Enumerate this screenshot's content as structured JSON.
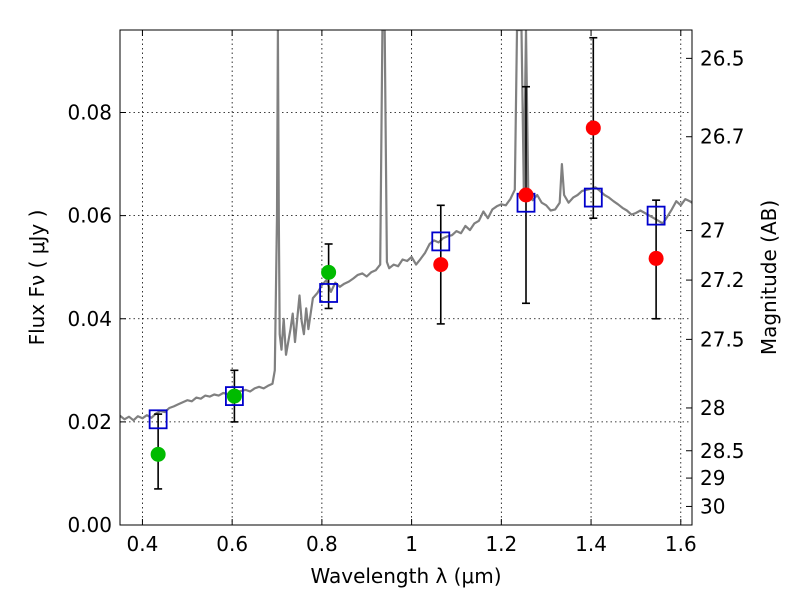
{
  "colors": {
    "spectrum": "#808080",
    "model_box": "#0000cc",
    "green_points": "#00bb00",
    "red_points": "#ff0000",
    "error_bars": "#000000"
  },
  "chart_data": {
    "type": "scatter",
    "title": "",
    "xlabel": "Wavelength  λ (μm)",
    "ylabel": "Flux  Fν  ( μJy )",
    "y2label": "Magnitude (AB)",
    "xlim": [
      0.35,
      1.625
    ],
    "ylim": [
      0.0,
      0.096
    ],
    "grid": true,
    "xticks": [
      0.4,
      0.6,
      0.8,
      1.0,
      1.2,
      1.4,
      1.6
    ],
    "xtick_labels": [
      "0.4",
      "0.6",
      "0.8",
      "1",
      "1.2",
      "1.4",
      "1.6"
    ],
    "yticks": [
      0.0,
      0.02,
      0.04,
      0.06,
      0.08
    ],
    "ytick_labels": [
      "0.00",
      "0.02",
      "0.04",
      "0.06",
      "0.08"
    ],
    "y2ticks": [
      {
        "label": "26.5",
        "flux": 0.0905
      },
      {
        "label": "26.7",
        "flux": 0.0753
      },
      {
        "label": "27",
        "flux": 0.0571
      },
      {
        "label": "27.2",
        "flux": 0.0475
      },
      {
        "label": "27.5",
        "flux": 0.036
      },
      {
        "label": "28",
        "flux": 0.0227
      },
      {
        "label": "28.5",
        "flux": 0.0144
      },
      {
        "label": "29",
        "flux": 0.0091
      },
      {
        "label": "30",
        "flux": 0.0036
      }
    ],
    "spectrum": [
      [
        0.35,
        0.0212
      ],
      [
        0.36,
        0.0205
      ],
      [
        0.37,
        0.021
      ],
      [
        0.38,
        0.0203
      ],
      [
        0.39,
        0.0211
      ],
      [
        0.4,
        0.0207
      ],
      [
        0.41,
        0.0213
      ],
      [
        0.42,
        0.0208
      ],
      [
        0.43,
        0.0216
      ],
      [
        0.44,
        0.0221
      ],
      [
        0.45,
        0.0219
      ],
      [
        0.46,
        0.0227
      ],
      [
        0.47,
        0.023
      ],
      [
        0.48,
        0.0234
      ],
      [
        0.49,
        0.0238
      ],
      [
        0.5,
        0.0242
      ],
      [
        0.51,
        0.024
      ],
      [
        0.52,
        0.0247
      ],
      [
        0.53,
        0.0245
      ],
      [
        0.54,
        0.0251
      ],
      [
        0.55,
        0.0249
      ],
      [
        0.56,
        0.0253
      ],
      [
        0.57,
        0.0251
      ],
      [
        0.58,
        0.0256
      ],
      [
        0.59,
        0.0254
      ],
      [
        0.6,
        0.0256
      ],
      [
        0.61,
        0.0258
      ],
      [
        0.62,
        0.026
      ],
      [
        0.63,
        0.0262
      ],
      [
        0.64,
        0.0259
      ],
      [
        0.65,
        0.0265
      ],
      [
        0.66,
        0.0268
      ],
      [
        0.67,
        0.0265
      ],
      [
        0.68,
        0.027
      ],
      [
        0.69,
        0.0274
      ],
      [
        0.695,
        0.03
      ],
      [
        0.7,
        0.06
      ],
      [
        0.702,
        0.096
      ],
      [
        0.704,
        0.06
      ],
      [
        0.706,
        0.037
      ],
      [
        0.71,
        0.034
      ],
      [
        0.715,
        0.04
      ],
      [
        0.72,
        0.033
      ],
      [
        0.73,
        0.038
      ],
      [
        0.735,
        0.041
      ],
      [
        0.74,
        0.0355
      ],
      [
        0.75,
        0.0445
      ],
      [
        0.755,
        0.0395
      ],
      [
        0.76,
        0.037
      ],
      [
        0.765,
        0.042
      ],
      [
        0.77,
        0.038
      ],
      [
        0.78,
        0.044
      ],
      [
        0.79,
        0.045
      ],
      [
        0.8,
        0.0465
      ],
      [
        0.81,
        0.0475
      ],
      [
        0.82,
        0.0452
      ],
      [
        0.83,
        0.047
      ],
      [
        0.84,
        0.0462
      ],
      [
        0.85,
        0.0468
      ],
      [
        0.86,
        0.0472
      ],
      [
        0.87,
        0.0478
      ],
      [
        0.88,
        0.0485
      ],
      [
        0.89,
        0.0488
      ],
      [
        0.9,
        0.0482
      ],
      [
        0.91,
        0.049
      ],
      [
        0.92,
        0.0494
      ],
      [
        0.93,
        0.0505
      ],
      [
        0.935,
        0.096
      ],
      [
        0.94,
        0.096
      ],
      [
        0.945,
        0.051
      ],
      [
        0.95,
        0.0498
      ],
      [
        0.96,
        0.0505
      ],
      [
        0.97,
        0.0502
      ],
      [
        0.98,
        0.0515
      ],
      [
        0.99,
        0.0512
      ],
      [
        1.0,
        0.052
      ],
      [
        1.01,
        0.0505
      ],
      [
        1.02,
        0.0516
      ],
      [
        1.03,
        0.0528
      ],
      [
        1.04,
        0.0545
      ],
      [
        1.05,
        0.0552
      ],
      [
        1.06,
        0.0548
      ],
      [
        1.07,
        0.0556
      ],
      [
        1.08,
        0.056
      ],
      [
        1.09,
        0.0562
      ],
      [
        1.1,
        0.057
      ],
      [
        1.11,
        0.0566
      ],
      [
        1.12,
        0.058
      ],
      [
        1.13,
        0.0572
      ],
      [
        1.14,
        0.0585
      ],
      [
        1.15,
        0.059
      ],
      [
        1.16,
        0.0608
      ],
      [
        1.17,
        0.0595
      ],
      [
        1.18,
        0.0612
      ],
      [
        1.19,
        0.0618
      ],
      [
        1.2,
        0.0622
      ],
      [
        1.21,
        0.062
      ],
      [
        1.22,
        0.0632
      ],
      [
        1.23,
        0.065
      ],
      [
        1.235,
        0.096
      ],
      [
        1.245,
        0.096
      ],
      [
        1.25,
        0.065
      ],
      [
        1.255,
        0.096
      ],
      [
        1.26,
        0.064
      ],
      [
        1.27,
        0.063
      ],
      [
        1.28,
        0.064
      ],
      [
        1.29,
        0.0625
      ],
      [
        1.3,
        0.062
      ],
      [
        1.31,
        0.061
      ],
      [
        1.32,
        0.0612
      ],
      [
        1.33,
        0.0625
      ],
      [
        1.335,
        0.07
      ],
      [
        1.34,
        0.064
      ],
      [
        1.35,
        0.0625
      ],
      [
        1.36,
        0.0635
      ],
      [
        1.37,
        0.064
      ],
      [
        1.38,
        0.0648
      ],
      [
        1.39,
        0.065
      ],
      [
        1.4,
        0.0652
      ],
      [
        1.41,
        0.0655
      ],
      [
        1.42,
        0.0648
      ],
      [
        1.43,
        0.064
      ],
      [
        1.44,
        0.0635
      ],
      [
        1.45,
        0.0628
      ],
      [
        1.46,
        0.0622
      ],
      [
        1.47,
        0.0615
      ],
      [
        1.48,
        0.061
      ],
      [
        1.49,
        0.0602
      ],
      [
        1.5,
        0.0605
      ],
      [
        1.51,
        0.061
      ],
      [
        1.52,
        0.0605
      ],
      [
        1.53,
        0.06
      ],
      [
        1.54,
        0.0595
      ],
      [
        1.55,
        0.059
      ],
      [
        1.56,
        0.0585
      ],
      [
        1.57,
        0.0598
      ],
      [
        1.58,
        0.0612
      ],
      [
        1.59,
        0.0628
      ],
      [
        1.6,
        0.062
      ],
      [
        1.61,
        0.0632
      ],
      [
        1.62,
        0.0628
      ],
      [
        1.625,
        0.0625
      ]
    ],
    "model_boxes": [
      {
        "x": 0.435,
        "y": 0.0205
      },
      {
        "x": 0.605,
        "y": 0.025
      },
      {
        "x": 0.815,
        "y": 0.045
      },
      {
        "x": 1.065,
        "y": 0.055
      },
      {
        "x": 1.255,
        "y": 0.0625
      },
      {
        "x": 1.405,
        "y": 0.0635
      },
      {
        "x": 1.545,
        "y": 0.06
      }
    ],
    "green_points": [
      {
        "x": 0.435,
        "y": 0.0137,
        "err_low": 0.007,
        "err_high": 0.0215
      },
      {
        "x": 0.605,
        "y": 0.025,
        "err_low": 0.02,
        "err_high": 0.03
      },
      {
        "x": 0.815,
        "y": 0.049,
        "err_low": 0.042,
        "err_high": 0.0545
      }
    ],
    "red_points": [
      {
        "x": 1.065,
        "y": 0.0505,
        "err_low": 0.039,
        "err_high": 0.062
      },
      {
        "x": 1.255,
        "y": 0.064,
        "err_low": 0.043,
        "err_high": 0.085
      },
      {
        "x": 1.405,
        "y": 0.077,
        "err_low": 0.0595,
        "err_high": 0.0945
      },
      {
        "x": 1.545,
        "y": 0.0517,
        "err_low": 0.04,
        "err_high": 0.063
      }
    ]
  }
}
